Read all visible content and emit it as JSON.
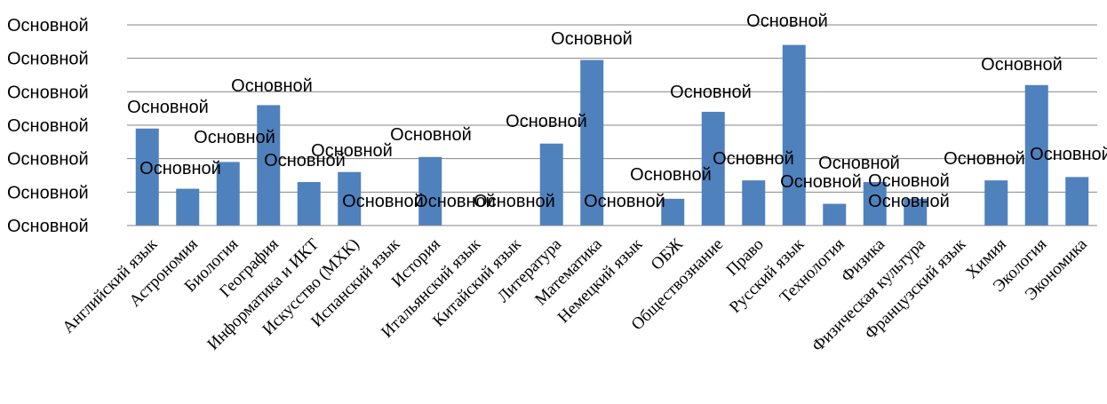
{
  "chart_data": {
    "type": "bar",
    "categories": [
      "Английский язык",
      "Астрономия",
      "Биология",
      "География",
      "Информатика и ИКТ",
      "Искусство (МХК)",
      "Испанский язык",
      "История",
      "Итальянский язык",
      "Китайский язык",
      "Литература",
      "Математика",
      "Немецкий язык",
      "ОБЖ",
      "Обществознание",
      "Право",
      "Русский язык",
      "Технология",
      "Физика",
      "Физическая культура",
      "Французский язык",
      "Химия",
      "Экология",
      "Экономика"
    ],
    "values": [
      2.9,
      1.1,
      1.9,
      3.6,
      1.3,
      1.6,
      0,
      2.05,
      0,
      0,
      2.45,
      4.95,
      0,
      0.8,
      3.4,
      1.35,
      5.4,
      0.65,
      1.3,
      0.8,
      0,
      1.35,
      4.2,
      1.45
    ],
    "y_tick_labels": [
      "Основной",
      "Основной",
      "Основной",
      "Основной",
      "Основной",
      "Основной",
      "Основной"
    ],
    "data_labels": [
      "Основной",
      "Основной",
      "Основной",
      "Основной",
      "Основной",
      "Основной",
      "Основной",
      "Основной",
      "Основной",
      "Основной",
      "Основной",
      "Основной",
      "Основной",
      "Основной",
      "Основной",
      "Основной",
      "Основной",
      "Основной",
      "Основной",
      "Основной",
      "Основной",
      "Основной",
      "Основной",
      "Основной"
    ],
    "ylim": [
      0,
      6
    ],
    "grid": true,
    "bar_color": "#4f81bd",
    "title": "",
    "xlabel": "",
    "ylabel": ""
  }
}
